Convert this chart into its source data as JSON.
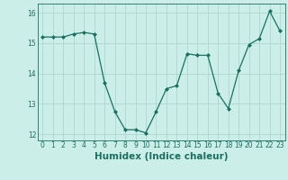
{
  "x": [
    0,
    1,
    2,
    3,
    4,
    5,
    6,
    7,
    8,
    9,
    10,
    11,
    12,
    13,
    14,
    15,
    16,
    17,
    18,
    19,
    20,
    21,
    22,
    23
  ],
  "y": [
    15.2,
    15.2,
    15.2,
    15.3,
    15.35,
    15.3,
    13.7,
    12.75,
    12.15,
    12.15,
    12.05,
    12.75,
    13.5,
    13.6,
    14.65,
    14.6,
    14.6,
    13.35,
    12.85,
    14.1,
    14.95,
    15.15,
    16.05,
    15.4
  ],
  "line_color": "#1a7060",
  "marker": "D",
  "markersize": 2.0,
  "linewidth": 0.9,
  "bg_color": "#cceee8",
  "grid_color": "#aad8d0",
  "xlabel": "Humidex (Indice chaleur)",
  "xlabel_fontsize": 7.5,
  "xlabel_color": "#1a7060",
  "tick_color": "#1a7060",
  "ylim": [
    11.8,
    16.3
  ],
  "yticks": [
    12,
    13,
    14,
    15,
    16
  ],
  "xticks": [
    0,
    1,
    2,
    3,
    4,
    5,
    6,
    7,
    8,
    9,
    10,
    11,
    12,
    13,
    14,
    15,
    16,
    17,
    18,
    19,
    20,
    21,
    22,
    23
  ],
  "tick_fontsize": 5.5
}
